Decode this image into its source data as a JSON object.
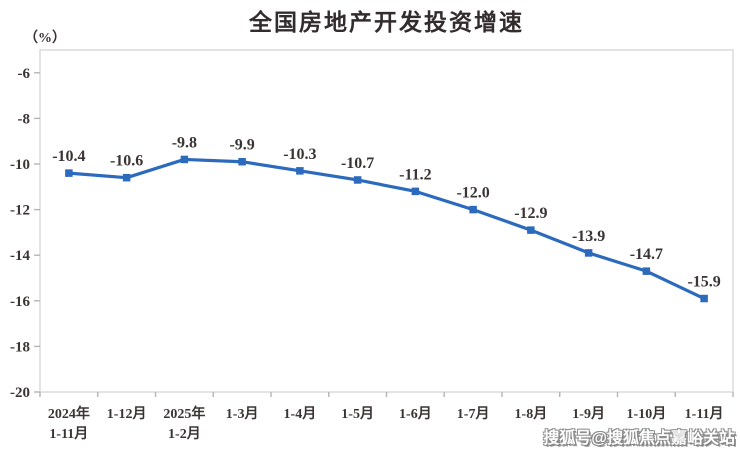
{
  "chart": {
    "title": "全国房地产开发投资增速",
    "y_unit_label": "（%）",
    "watermark": "搜狐号@搜狐焦点嘉峪关站"
  },
  "chart_data": {
    "type": "line",
    "title": "全国房地产开发投资增速",
    "categories": [
      "2024年\n1-11月",
      "1-12月",
      "2025年\n1-2月",
      "1-3月",
      "1-4月",
      "1-5月",
      "1-6月",
      "1-7月",
      "1-8月",
      "1-9月",
      "1-10月",
      "1-11月"
    ],
    "values": [
      -10.4,
      -10.6,
      -9.8,
      -9.9,
      -10.3,
      -10.7,
      -11.2,
      -12.0,
      -12.9,
      -13.9,
      -14.7,
      -15.9
    ],
    "data_labels": [
      "-10.4",
      "-10.6",
      "-9.8",
      "-9.9",
      "-10.3",
      "-10.7",
      "-11.2",
      "-12.0",
      "-12.9",
      "-13.9",
      "-14.7",
      "-15.9"
    ],
    "xlabel": "",
    "ylabel": "（%）",
    "ylim": [
      -20,
      -5
    ],
    "yticks": [
      -6,
      -8,
      -10,
      -12,
      -14,
      -16,
      -18,
      -20
    ],
    "grid": false,
    "legend": "none",
    "line_color": "#2b6abc",
    "marker": "square",
    "marker_color": "#2b6abc",
    "axis_border_color": "#d8d8d8",
    "tick_mark_color": "#b5b5b5",
    "label_color": "#3a3433"
  }
}
